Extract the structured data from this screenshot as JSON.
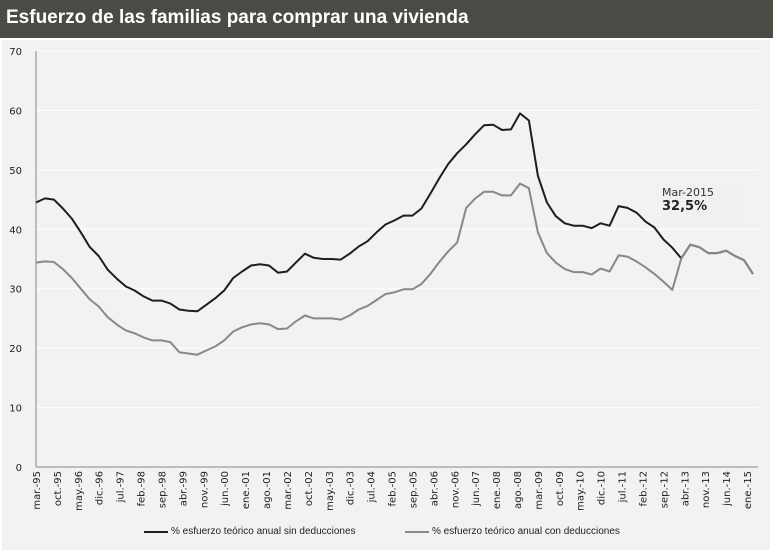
{
  "title": "Esfuerzo de las familias para comprar una vivienda",
  "chart_data": {
    "type": "line",
    "title": "Esfuerzo de las familias para comprar una vivienda",
    "xlabel": "",
    "ylabel": "",
    "ylim": [
      0,
      70
    ],
    "yticks": [
      0,
      10,
      20,
      30,
      40,
      50,
      60,
      70
    ],
    "grid": true,
    "legend": "bottom",
    "x_tick_labels": [
      "mar.-95",
      "oct.-95",
      "may.-96",
      "dic.-96",
      "jul.-97",
      "feb.-98",
      "sep.-98",
      "abr.-99",
      "nov.-99",
      "jun.-00",
      "ene.-01",
      "ago.-01",
      "mar.-02",
      "oct.-02",
      "may.-03",
      "dic.-03",
      "jul.-04",
      "feb.-05",
      "sep.-05",
      "abr.-06",
      "nov.-06",
      "jun.-07",
      "ene.-08",
      "ago.-08",
      "mar.-09",
      "oct.-09",
      "may.-10",
      "dic.-10",
      "jul.-11",
      "feb.-12",
      "sep.-12",
      "abr.-13",
      "nov.-13",
      "jun.-14",
      "ene.-15"
    ],
    "x_range": [
      "mar.-95",
      "mar.-15"
    ],
    "x_step": "quarterly",
    "series": [
      {
        "name": "% esfuerzo teórico anual sin deducciones",
        "color": "#1e1e1e",
        "values": [
          44.5,
          45.2,
          45.0,
          43.5,
          41.8,
          39.5,
          37.0,
          35.5,
          33.2,
          31.7,
          30.4,
          29.7,
          28.7,
          28.0,
          28.0,
          27.5,
          26.5,
          26.3,
          26.2,
          27.3,
          28.4,
          29.7,
          31.8,
          32.9,
          33.9,
          34.1,
          33.9,
          32.7,
          32.9,
          34.4,
          35.9,
          35.2,
          35.0,
          35.0,
          34.9,
          35.9,
          37.1,
          38.0,
          39.5,
          40.8,
          41.5,
          42.3,
          42.3,
          43.5,
          46.0,
          48.6,
          51.0,
          52.8,
          54.3,
          56.0,
          57.5,
          57.6,
          56.7,
          56.8,
          59.5,
          58.3,
          49.0,
          44.5,
          42.2,
          41.0,
          40.6,
          40.6,
          40.2,
          41.0,
          40.6,
          43.9,
          43.6,
          42.8,
          41.3,
          40.3,
          38.3,
          36.9,
          35.1,
          37.4,
          37.0,
          36.0,
          36.0,
          36.4,
          35.5,
          34.8,
          32.5
        ]
      },
      {
        "name": "% esfuerzo teórico anual con deducciones",
        "color": "#888888",
        "values": [
          34.4,
          34.6,
          34.5,
          33.3,
          31.8,
          30.0,
          28.2,
          27.0,
          25.2,
          24.0,
          23.0,
          22.5,
          21.8,
          21.3,
          21.3,
          21.0,
          19.3,
          19.1,
          18.9,
          19.6,
          20.3,
          21.3,
          22.8,
          23.5,
          24.0,
          24.2,
          24.0,
          23.2,
          23.3,
          24.5,
          25.5,
          25.0,
          25.0,
          25.0,
          24.8,
          25.5,
          26.5,
          27.1,
          28.1,
          29.1,
          29.4,
          29.9,
          29.9,
          30.8,
          32.5,
          34.5,
          36.3,
          37.8,
          43.6,
          45.2,
          46.3,
          46.3,
          45.7,
          45.7,
          47.7,
          46.9,
          39.5,
          36.0,
          34.4,
          33.3,
          32.8,
          32.8,
          32.4,
          33.4,
          32.9,
          35.6,
          35.4,
          34.6,
          33.6,
          32.5,
          31.2,
          29.8,
          35.1,
          37.4,
          37.0,
          36.0,
          36.0,
          36.4,
          35.5,
          34.8,
          32.5
        ]
      }
    ],
    "annotation": {
      "date": "Mar-2015",
      "value": "32,5%"
    }
  }
}
